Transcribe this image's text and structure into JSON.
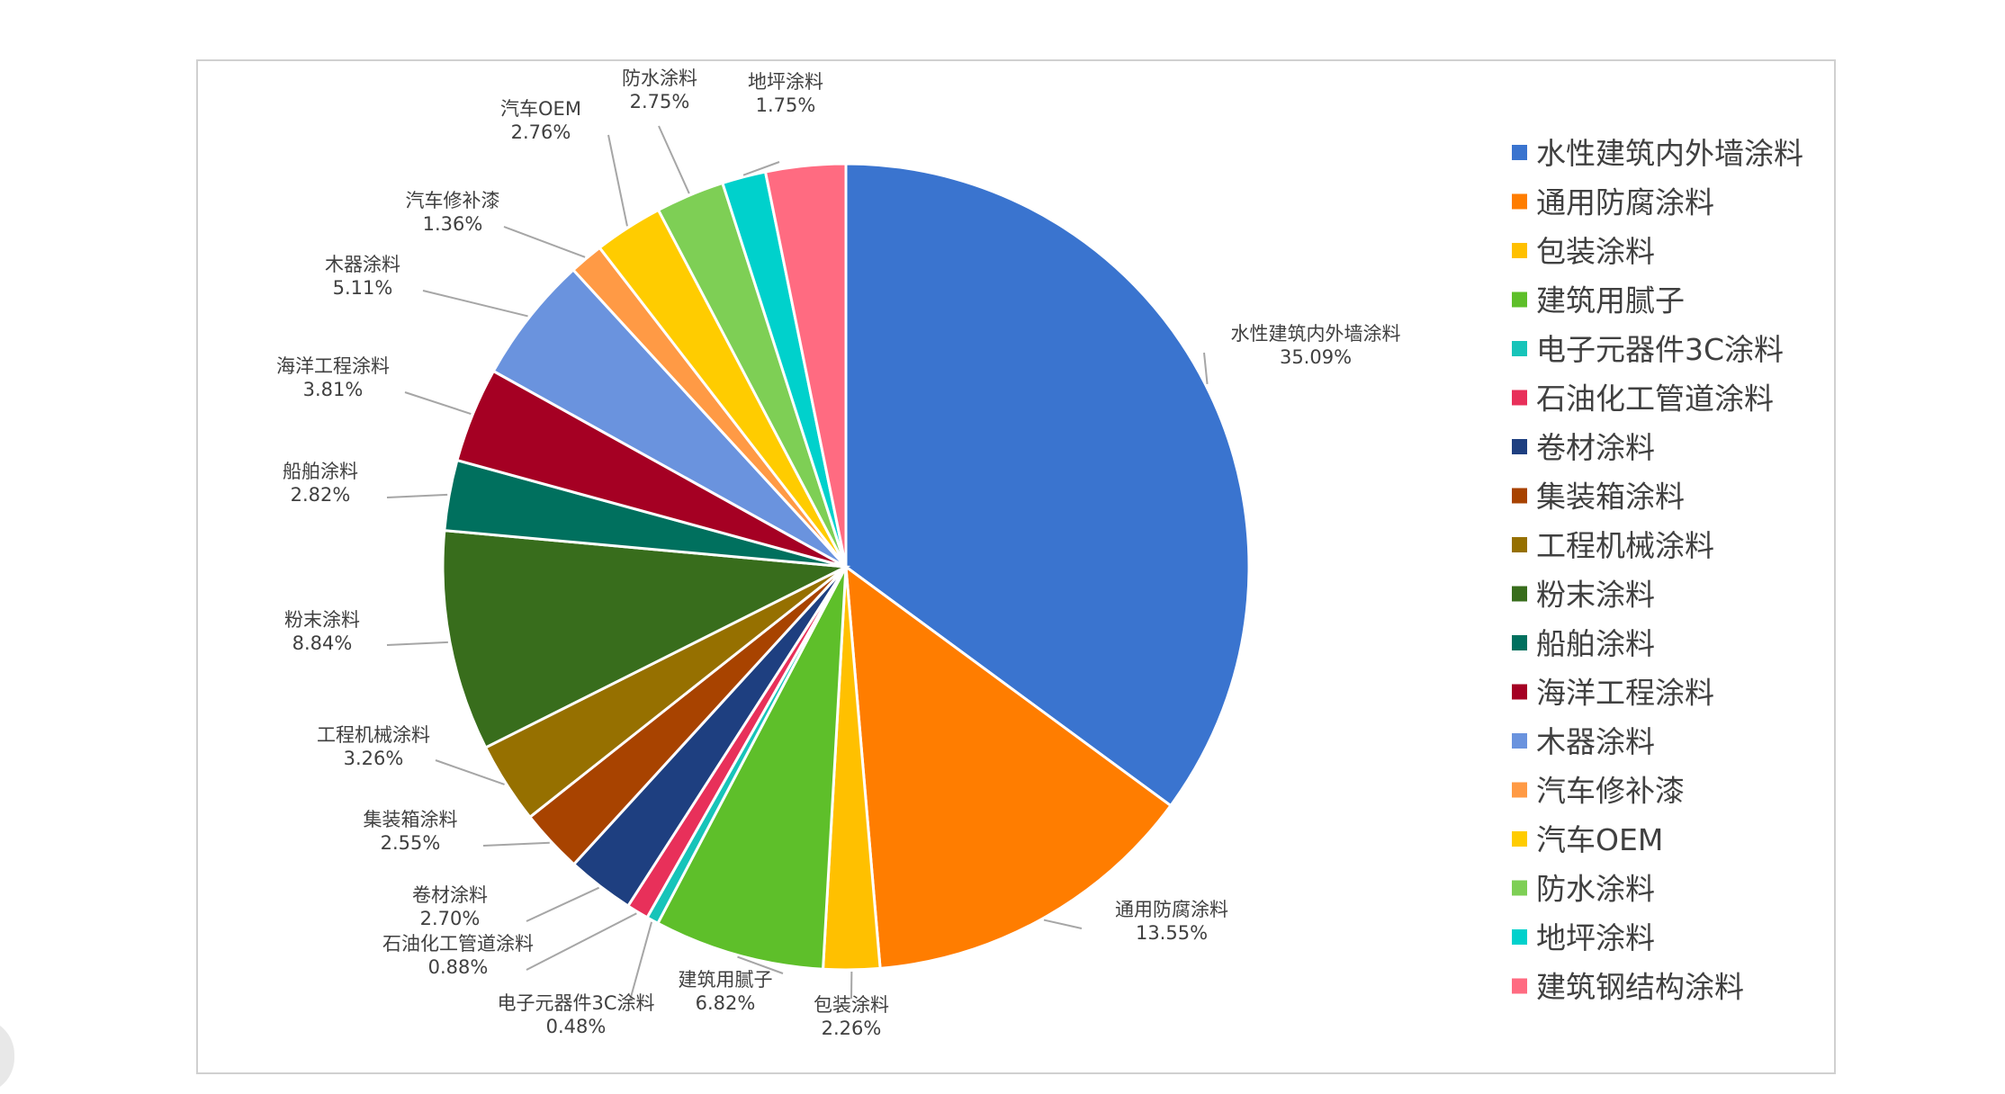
{
  "chart_data": {
    "type": "pie",
    "title": "",
    "legend_position": "right",
    "slices": [
      {
        "label": "水性建筑内外墙涂料",
        "value": 35.09,
        "display": "35.09%",
        "color": "#3A74CF"
      },
      {
        "label": "通用防腐涂料",
        "value": 13.55,
        "display": "13.55%",
        "color": "#FF7D00"
      },
      {
        "label": "包装涂料",
        "value": 2.26,
        "display": "2.26%",
        "color": "#FFC000"
      },
      {
        "label": "建筑用腻子",
        "value": 6.82,
        "display": "6.82%",
        "color": "#5EBF2A"
      },
      {
        "label": "电子元器件3C涂料",
        "value": 0.48,
        "display": "0.48%",
        "color": "#17C4B9"
      },
      {
        "label": "石油化工管道涂料",
        "value": 0.88,
        "display": "0.88%",
        "color": "#E8305A"
      },
      {
        "label": "卷材涂料",
        "value": 2.7,
        "display": "2.70%",
        "color": "#1E3F80"
      },
      {
        "label": "集装箱涂料",
        "value": 2.55,
        "display": "2.55%",
        "color": "#A84300"
      },
      {
        "label": "工程机械涂料",
        "value": 3.26,
        "display": "3.26%",
        "color": "#967000"
      },
      {
        "label": "粉末涂料",
        "value": 8.84,
        "display": "8.84%",
        "color": "#386D1C"
      },
      {
        "label": "船舶涂料",
        "value": 2.82,
        "display": "2.82%",
        "color": "#00705E"
      },
      {
        "label": "海洋工程涂料",
        "value": 3.81,
        "display": "3.81%",
        "color": "#A50023"
      },
      {
        "label": "木器涂料",
        "value": 5.11,
        "display": "5.11%",
        "color": "#6A93DE"
      },
      {
        "label": "汽车修补漆",
        "value": 1.36,
        "display": "1.36%",
        "color": "#FF9A45"
      },
      {
        "label": "汽车OEM",
        "value": 2.76,
        "display": "2.76%",
        "color": "#FFCC00"
      },
      {
        "label": "防水涂料",
        "value": 2.75,
        "display": "2.75%",
        "color": "#7ECF55"
      },
      {
        "label": "地坪涂料",
        "value": 1.75,
        "display": "1.75%",
        "color": "#00D1CC"
      },
      {
        "label": "建筑钢结构涂料",
        "value": 3.2,
        "display": "",
        "color": "#FF6B81"
      }
    ]
  }
}
